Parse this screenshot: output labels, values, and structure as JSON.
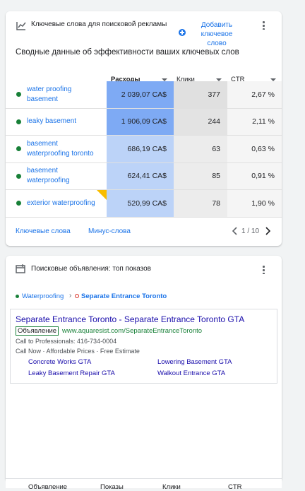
{
  "keywords_card": {
    "title": "Ключевые слова для поисковой рекламы",
    "add_button": "Добавить ключевое слово",
    "subtitle": "Сводные данные об эффективности ваших ключевых слов",
    "columns": [
      "Расходы",
      "Клики",
      "CTR"
    ],
    "rows": [
      {
        "keyword": "water proofing basement",
        "cost": "2 039,07 CA$",
        "clicks": "377",
        "ctr": "2,67 %"
      },
      {
        "keyword": "leaky basement",
        "cost": "1 906,09 CA$",
        "clicks": "244",
        "ctr": "2,11 %"
      },
      {
        "keyword": "basement waterproofing toronto",
        "cost": "686,19 CA$",
        "clicks": "63",
        "ctr": "0,63 %"
      },
      {
        "keyword": "basement waterproofing",
        "cost": "624,41 CA$",
        "clicks": "85",
        "ctr": "0,91 %"
      },
      {
        "keyword": "exterior waterproofing",
        "cost": "520,99 CA$",
        "clicks": "78",
        "ctr": "1,90 %"
      }
    ],
    "footer_links": [
      "Ключевые слова",
      "Минус-слова"
    ],
    "pagination": "1 / 10"
  },
  "ads_card": {
    "title": "Поисковые объявления: топ показов",
    "breadcrumb": {
      "ad_group": "Waterproofing",
      "campaign": "Separate Entrance Toronto"
    },
    "ad": {
      "headline": "Separate Entrance Toronto - Separate Entrance Toronto GTA",
      "badge": "Объявление",
      "url": "www.aquaresist.com/SeparateEntranceToronto",
      "call": "Call to Professionals: 416-734-0004",
      "description": "Call Now · Affordable Prices · Free Estimate",
      "sitelinks": [
        "Concrete Works GTA",
        "Lowering Basement GTA",
        "Leaky Basement Repair GTA",
        "Walkout Entrance GTA"
      ]
    }
  },
  "bottom_columns": [
    "Объявление",
    "Показы",
    "Клики",
    "CTR"
  ]
}
